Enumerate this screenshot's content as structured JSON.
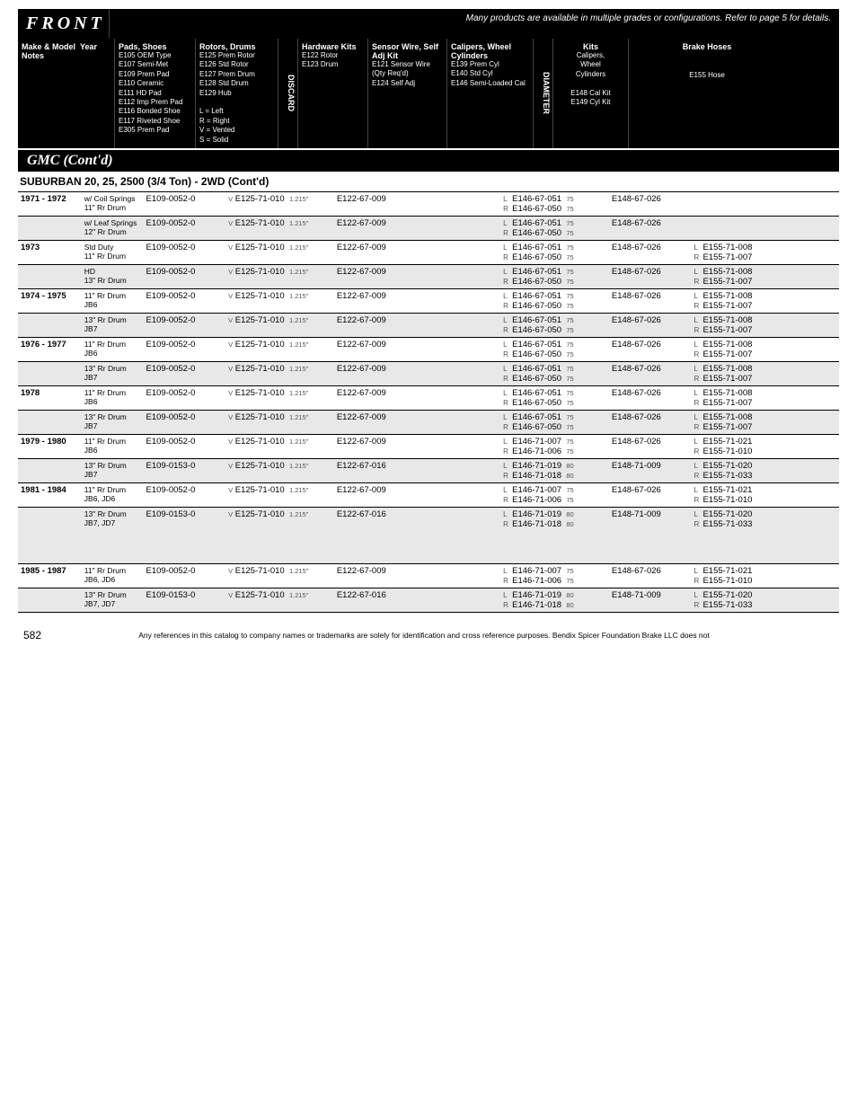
{
  "front_letters": [
    "F",
    "R",
    "O",
    "N",
    "T"
  ],
  "header_note": "Many products are available in multiple grades or configurations.  Refer to page 5 for details.",
  "columns": {
    "make_model": "Make & Model",
    "year_notes": "Year Notes",
    "pads": {
      "title": "Pads, Shoes",
      "sub": "E105 OEM Type\nE107 Semi-Met\nE109 Prem Pad\nE110 Ceramic\nE111 HD Pad\nE112 Imp Prem Pad\nE116 Bonded Shoe\nE117 Riveted Shoe\nE305 Prem Pad"
    },
    "rotors": {
      "title": "Rotors, Drums",
      "sub": "E125 Prem Rotor\nE126 Std Rotor\nE127 Prem Drum\nE128 Std Drum\nE129 Hub\n\nL = Left\nR = Right\nV = Vented\nS = Solid"
    },
    "discard": "DISCARD",
    "hardware": {
      "title": "Hardware Kits",
      "sub": "E122 Rotor\nE123 Drum"
    },
    "sensor": {
      "title": "Sensor Wire, Self Adj Kit",
      "sub": "E121 Sensor Wire\n(Qty Req'd)\nE124 Self Adj"
    },
    "calipers": {
      "title": "Calipers, Wheel Cylinders",
      "sub": "E139 Prem Cyl\nE140 Std Cyl\nE146 Semi-Loaded Cal"
    },
    "diameter": "DIAMETER",
    "kits": {
      "title": "Kits",
      "sub": "Calipers,\nWheel\nCylinders\n\nE148 Cal Kit\nE149 Cyl Kit"
    },
    "hoses": {
      "title": "Brake Hoses",
      "sub": "E155 Hose"
    }
  },
  "section": "GMC  (Cont'd)",
  "subsection": "SUBURBAN 20, 25, 2500 (3/4 Ton) - 2WD (Cont'd)",
  "rows": [
    {
      "shade": false,
      "tall": true,
      "yr": "1971 - 1972",
      "notes": "w/ Coil Springs\n11\" Rr Drum",
      "pad": "E109-0052-0",
      "rot_pfx": "V",
      "rot": "E125-71-010",
      "disc": "1.215\"",
      "hw": "E122-67-009",
      "cal": [
        [
          "L",
          "E146-67-051",
          "75"
        ],
        [
          "R",
          "E146-67-050",
          "75"
        ]
      ],
      "kit": "E148-67-026",
      "bh": []
    },
    {
      "shade": true,
      "yr": "",
      "notes": "w/ Leaf Springs\n12\" Rr Drum",
      "pad": "E109-0052-0",
      "rot_pfx": "V",
      "rot": "E125-71-010",
      "disc": "1.215\"",
      "hw": "E122-67-009",
      "cal": [
        [
          "L",
          "E146-67-051",
          "75"
        ],
        [
          "R",
          "E146-67-050",
          "75"
        ]
      ],
      "kit": "E148-67-026",
      "bh": []
    },
    {
      "shade": false,
      "yr": "1973",
      "notes": "Std Duty\n11\" Rr Drum",
      "pad": "E109-0052-0",
      "rot_pfx": "V",
      "rot": "E125-71-010",
      "disc": "1.215\"",
      "hw": "E122-67-009",
      "cal": [
        [
          "L",
          "E146-67-051",
          "75"
        ],
        [
          "R",
          "E146-67-050",
          "75"
        ]
      ],
      "kit": "E148-67-026",
      "bh": [
        [
          "L",
          "E155-71-008"
        ],
        [
          "R",
          "E155-71-007"
        ]
      ]
    },
    {
      "shade": true,
      "yr": "",
      "notes": "HD\n13\" Rr Drum",
      "pad": "E109-0052-0",
      "rot_pfx": "V",
      "rot": "E125-71-010",
      "disc": "1.215\"",
      "hw": "E122-67-009",
      "cal": [
        [
          "L",
          "E146-67-051",
          "75"
        ],
        [
          "R",
          "E146-67-050",
          "75"
        ]
      ],
      "kit": "E148-67-026",
      "bh": [
        [
          "L",
          "E155-71-008"
        ],
        [
          "R",
          "E155-71-007"
        ]
      ]
    },
    {
      "shade": false,
      "yr": "1974 - 1975",
      "notes": "11\" Rr Drum\nJB6",
      "pad": "E109-0052-0",
      "rot_pfx": "V",
      "rot": "E125-71-010",
      "disc": "1.215\"",
      "hw": "E122-67-009",
      "cal": [
        [
          "L",
          "E146-67-051",
          "75"
        ],
        [
          "R",
          "E146-67-050",
          "75"
        ]
      ],
      "kit": "E148-67-026",
      "bh": [
        [
          "L",
          "E155-71-008"
        ],
        [
          "R",
          "E155-71-007"
        ]
      ]
    },
    {
      "shade": true,
      "yr": "",
      "notes": "13\" Rr Drum\nJB7",
      "pad": "E109-0052-0",
      "rot_pfx": "V",
      "rot": "E125-71-010",
      "disc": "1.215\"",
      "hw": "E122-67-009",
      "cal": [
        [
          "L",
          "E146-67-051",
          "75"
        ],
        [
          "R",
          "E146-67-050",
          "75"
        ]
      ],
      "kit": "E148-67-026",
      "bh": [
        [
          "L",
          "E155-71-008"
        ],
        [
          "R",
          "E155-71-007"
        ]
      ]
    },
    {
      "shade": false,
      "tall": true,
      "yr": "1976 - 1977",
      "notes": "11\" Rr Drum\nJB6",
      "pad": "E109-0052-0",
      "rot_pfx": "V",
      "rot": "E125-71-010",
      "disc": "1.215\"",
      "hw": "E122-67-009",
      "cal": [
        [
          "L",
          "E146-67-051",
          "75"
        ],
        [
          "R",
          "E146-67-050",
          "75"
        ]
      ],
      "kit": "E148-67-026",
      "bh": [
        [
          "L",
          "E155-71-008"
        ],
        [
          "R",
          "E155-71-007"
        ]
      ]
    },
    {
      "shade": true,
      "yr": "",
      "notes": "13\" Rr Drum\nJB7",
      "pad": "E109-0052-0",
      "rot_pfx": "V",
      "rot": "E125-71-010",
      "disc": "1.215\"",
      "hw": "E122-67-009",
      "cal": [
        [
          "L",
          "E146-67-051",
          "75"
        ],
        [
          "R",
          "E146-67-050",
          "75"
        ]
      ],
      "kit": "E148-67-026",
      "bh": [
        [
          "L",
          "E155-71-008"
        ],
        [
          "R",
          "E155-71-007"
        ]
      ]
    },
    {
      "shade": false,
      "tall": true,
      "yr": "1978",
      "notes": "11\" Rr Drum\nJB6",
      "pad": "E109-0052-0",
      "rot_pfx": "V",
      "rot": "E125-71-010",
      "disc": "1.215\"",
      "hw": "E122-67-009",
      "cal": [
        [
          "L",
          "E146-67-051",
          "75"
        ],
        [
          "R",
          "E146-67-050",
          "75"
        ]
      ],
      "kit": "E148-67-026",
      "bh": [
        [
          "L",
          "E155-71-008"
        ],
        [
          "R",
          "E155-71-007"
        ]
      ]
    },
    {
      "shade": true,
      "yr": "",
      "notes": "13\" Rr Drum\nJB7",
      "pad": "E109-0052-0",
      "rot_pfx": "V",
      "rot": "E125-71-010",
      "disc": "1.215\"",
      "hw": "E122-67-009",
      "cal": [
        [
          "L",
          "E146-67-051",
          "75"
        ],
        [
          "R",
          "E146-67-050",
          "75"
        ]
      ],
      "kit": "E148-67-026",
      "bh": [
        [
          "L",
          "E155-71-008"
        ],
        [
          "R",
          "E155-71-007"
        ]
      ]
    },
    {
      "shade": false,
      "tall": true,
      "yr": "1979 - 1980",
      "notes": "11\" Rr Drum\nJB6",
      "pad": "E109-0052-0",
      "rot_pfx": "V",
      "rot": "E125-71-010",
      "disc": "1.215\"",
      "hw": "E122-67-009",
      "cal": [
        [
          "L",
          "E146-71-007",
          "75"
        ],
        [
          "R",
          "E146-71-006",
          "75"
        ]
      ],
      "kit": "E148-67-026",
      "bh": [
        [
          "L",
          "E155-71-021"
        ],
        [
          "R",
          "E155-71-010"
        ]
      ]
    },
    {
      "shade": true,
      "yr": "",
      "notes": "13\" Rr Drum\nJB7",
      "pad": "E109-0153-0",
      "rot_pfx": "V",
      "rot": "E125-71-010",
      "disc": "1.215\"",
      "hw": "E122-67-016",
      "cal": [
        [
          "L",
          "E146-71-019",
          "80"
        ],
        [
          "R",
          "E146-71-018",
          "80"
        ]
      ],
      "kit": "E148-71-009",
      "bh": [
        [
          "L",
          "E155-71-020"
        ],
        [
          "R",
          "E155-71-033"
        ]
      ]
    },
    {
      "shade": false,
      "tall": true,
      "yr": "1981 - 1984",
      "notes": "11\" Rr Drum\nJB6, JD6",
      "pad": "E109-0052-0",
      "rot_pfx": "V",
      "rot": "E125-71-010",
      "disc": "1.215\"",
      "hw": "E122-67-009",
      "cal": [
        [
          "L",
          "E146-71-007",
          "75"
        ],
        [
          "R",
          "E146-71-006",
          "75"
        ]
      ],
      "kit": "E148-67-026",
      "bh": [
        [
          "L",
          "E155-71-021"
        ],
        [
          "R",
          "E155-71-010"
        ]
      ]
    },
    {
      "shade": true,
      "tall": true,
      "xlpad": true,
      "yr": "",
      "notes": "13\" Rr Drum\nJB7, JD7",
      "pad": "E109-0153-0",
      "rot_pfx": "V",
      "rot": "E125-71-010",
      "disc": "1.215\"",
      "hw": "E122-67-016",
      "cal": [
        [
          "L",
          "E146-71-019",
          "80"
        ],
        [
          "R",
          "E146-71-018",
          "80"
        ]
      ],
      "kit": "E148-71-009",
      "bh": [
        [
          "L",
          "E155-71-020"
        ],
        [
          "R",
          "E155-71-033"
        ]
      ]
    },
    {
      "shade": false,
      "tall": true,
      "yr": "1985 - 1987",
      "notes": "11\" Rr Drum\nJB6, JD6",
      "pad": "E109-0052-0",
      "rot_pfx": "V",
      "rot": "E125-71-010",
      "disc": "1.215\"",
      "hw": "E122-67-009",
      "cal": [
        [
          "L",
          "E146-71-007",
          "75"
        ],
        [
          "R",
          "E146-71-006",
          "75"
        ]
      ],
      "kit": "E148-67-026",
      "bh": [
        [
          "L",
          "E155-71-021"
        ],
        [
          "R",
          "E155-71-010"
        ]
      ]
    },
    {
      "shade": true,
      "tall": true,
      "yr": "",
      "notes": "13\" Rr Drum\nJB7, JD7",
      "pad": "E109-0153-0",
      "rot_pfx": "V",
      "rot": "E125-71-010",
      "disc": "1.215\"",
      "hw": "E122-67-016",
      "cal": [
        [
          "L",
          "E146-71-019",
          "80"
        ],
        [
          "R",
          "E146-71-018",
          "80"
        ]
      ],
      "kit": "E148-71-009",
      "bh": [
        [
          "L",
          "E155-71-020"
        ],
        [
          "R",
          "E155-71-033"
        ]
      ]
    }
  ],
  "footer": {
    "page": "582",
    "disclaimer": "Any references in this catalog to company names or trademarks are solely for identification and cross reference purposes. Bendix Spicer Foundation Brake LLC does not"
  }
}
